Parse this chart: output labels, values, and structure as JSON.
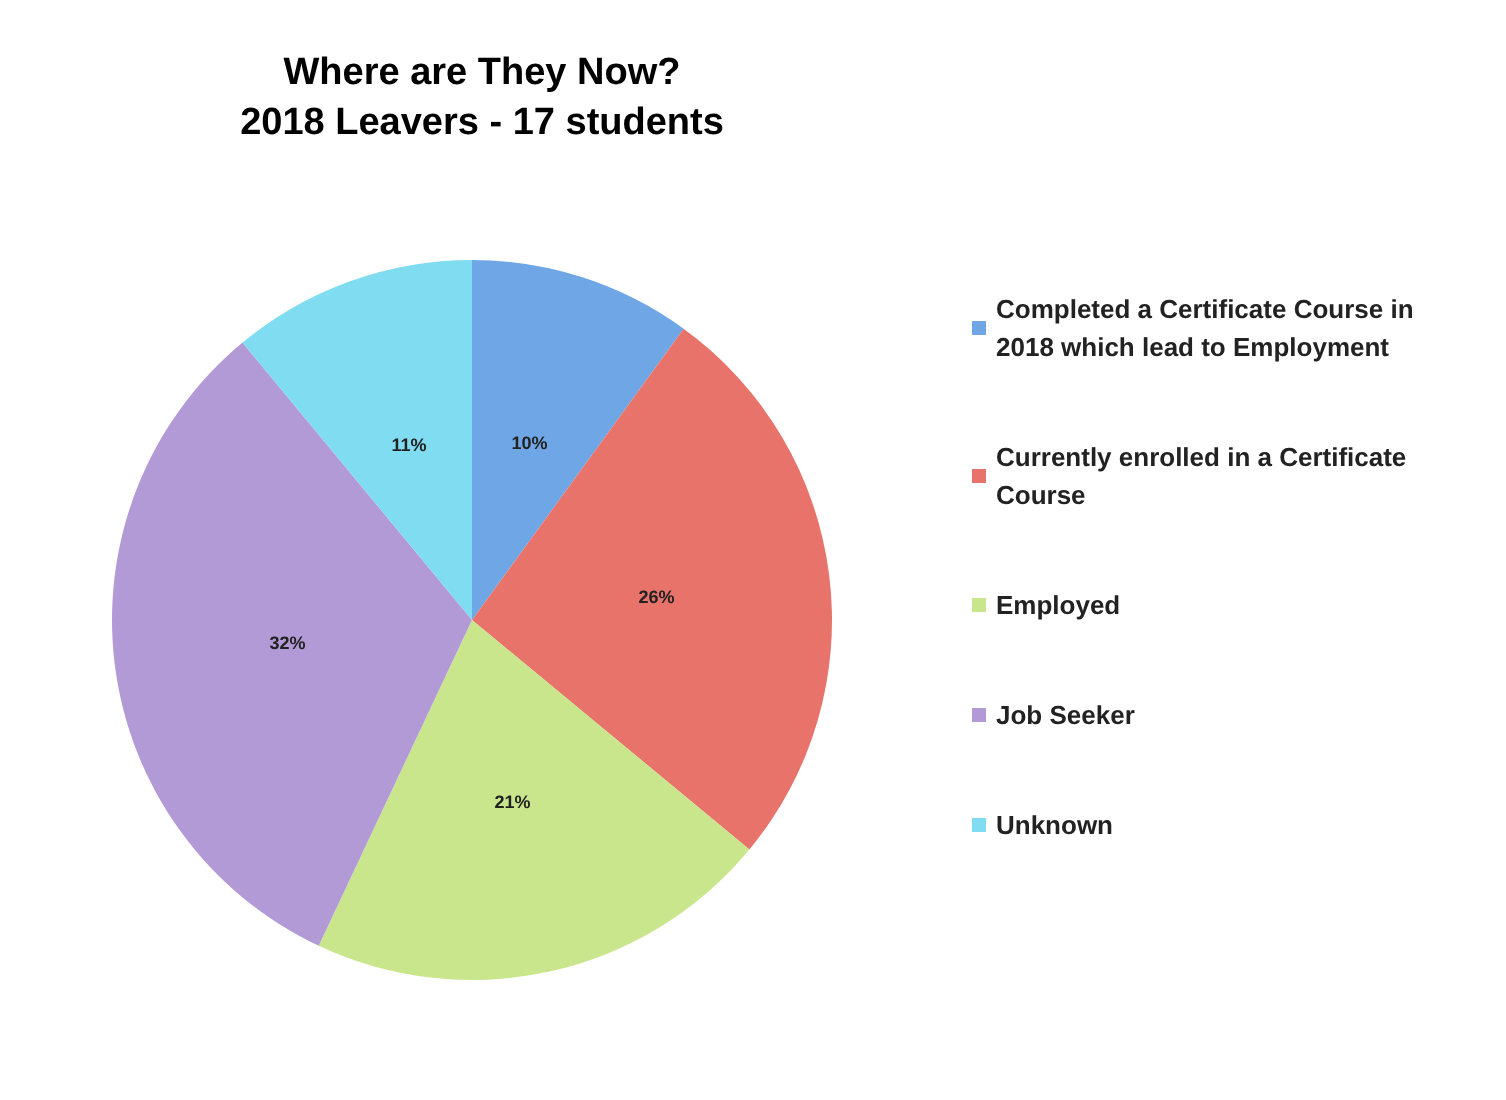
{
  "chart_data": {
    "type": "pie",
    "title": "Where are They Now?",
    "subtitle": "2018 Leavers - 17 students",
    "categories": [
      "Completed a Certificate Course in 2018 which lead to Employment",
      "Currently enrolled in a Certificate Course",
      "Employed",
      "Job Seeker",
      "Unknown"
    ],
    "values": [
      10,
      26,
      21,
      32,
      11
    ],
    "value_labels": [
      "10%",
      "26%",
      "21%",
      "32%",
      "11%"
    ],
    "colors": [
      "#6ea6e6",
      "#e8736b",
      "#c9e68c",
      "#b29ad6",
      "#80dcf0"
    ],
    "legend": "right"
  }
}
